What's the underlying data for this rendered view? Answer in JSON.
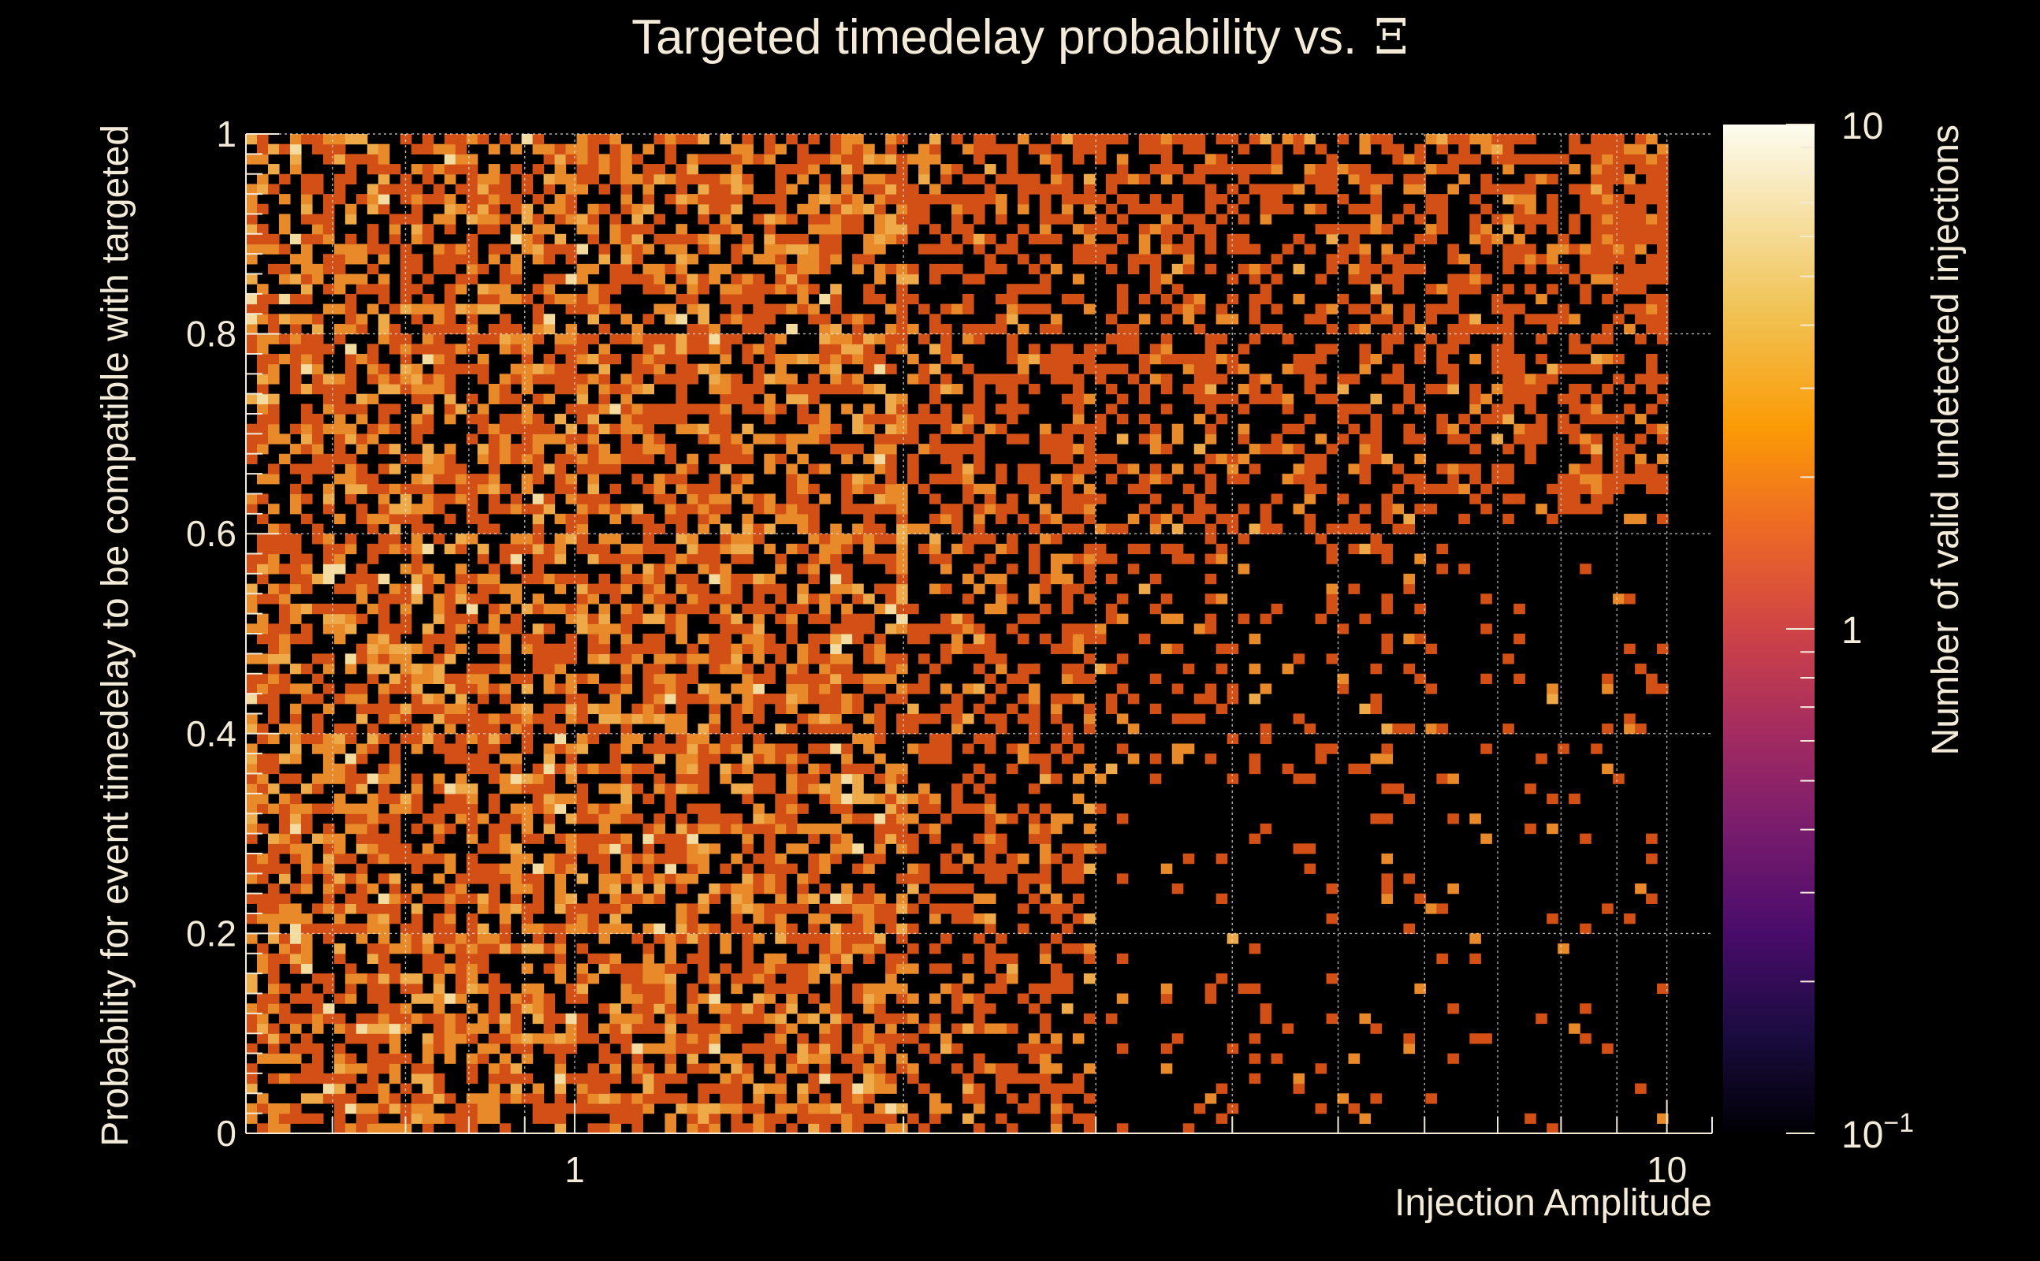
{
  "chart_data": {
    "type": "heatmap",
    "title": "Targeted timedelay probability vs.",
    "title_symbol": "Ξ",
    "xlabel": "Injection Amplitude",
    "ylabel": "Probability for event timedelay to be compatible with targeted",
    "zlabel": "Number of valid undetected injections",
    "x_scale": "log",
    "xlim": [
      0.5,
      11
    ],
    "ylim": [
      0,
      1
    ],
    "z_scale": "log",
    "zlim": [
      0.1,
      10
    ],
    "x_ticks": [
      "1",
      "10"
    ],
    "y_ticks": [
      "0",
      "0.2",
      "0.4",
      "0.6",
      "0.8",
      "1"
    ],
    "z_ticks": [
      {
        "base": "10",
        "exp": "−1"
      },
      {
        "base": "1",
        "exp": ""
      },
      {
        "base": "10",
        "exp": ""
      }
    ],
    "grid": true,
    "bins": {
      "x": 133,
      "y": 100
    },
    "density_profile": {
      "note": "fraction of filled bins per x-region (estimated)",
      "regions": [
        {
          "x_range": [
            0.5,
            2.0
          ],
          "fill": 0.62
        },
        {
          "x_range": [
            2.0,
            3.0
          ],
          "fill": 0.45
        },
        {
          "x_range": [
            3.0,
            6.0
          ],
          "fill_top": 0.4,
          "fill_bottom": 0.08
        },
        {
          "x_range": [
            6.0,
            10.0
          ],
          "fill_top": 0.45,
          "fill_bottom": 0.04
        }
      ]
    },
    "colormap": [
      "#000000",
      "#1b0c41",
      "#4a0c6b",
      "#781c6d",
      "#a52c60",
      "#cf4446",
      "#ed6925",
      "#fb9b06",
      "#f7d13d",
      "#fcffa4"
    ],
    "cell_colors": {
      "one": "#d24f16",
      "two": "#e88a2a",
      "three": "#eeaa48",
      "high": "#f4dca0"
    },
    "background": "#000000",
    "text_color": "#f3ead8"
  }
}
